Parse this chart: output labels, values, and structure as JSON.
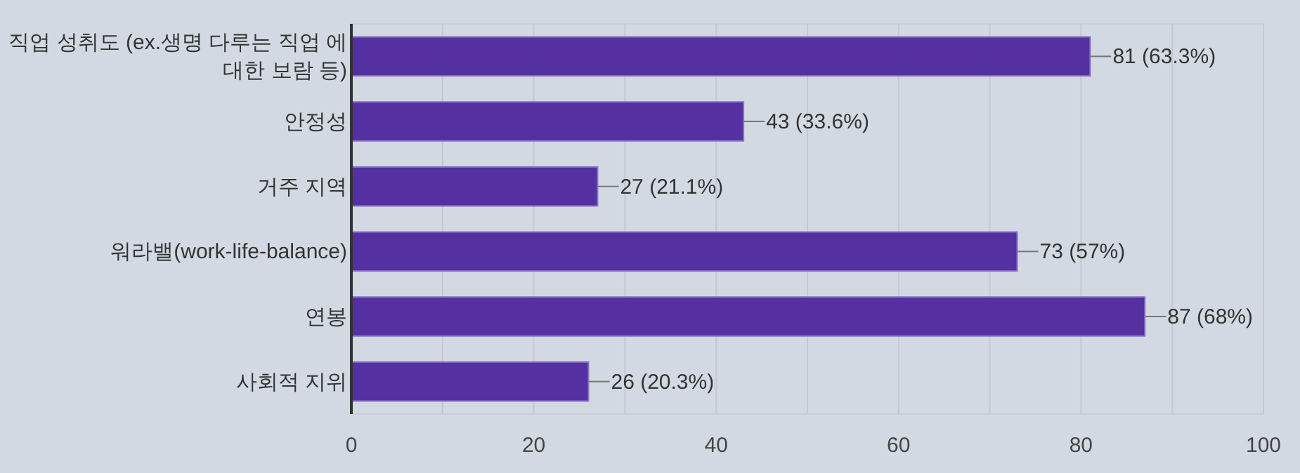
{
  "chart_data": {
    "type": "bar",
    "orientation": "horizontal",
    "categories": [
      "직업 성취도 (ex.생명 다루는 직업 에 대한 보람 등)",
      "안정성",
      "거주 지역",
      "워라밸(work-life-balance)",
      "연봉",
      "사회적 지위"
    ],
    "values": [
      81,
      43,
      27,
      73,
      87,
      26
    ],
    "value_labels": [
      "81 (63.3%)",
      "43 (33.6%)",
      "27 (21.1%)",
      "73 (57%)",
      "87 (68%)",
      "26 (20.3%)"
    ],
    "color": "#5530a0",
    "xlim": [
      0,
      100
    ],
    "xticks": [
      0,
      {
        "value": 10,
        "label": null
      },
      20,
      {
        "value": 30,
        "label": null
      },
      40,
      {
        "value": 50,
        "label": null
      },
      60,
      {
        "value": 70,
        "label": null
      },
      80,
      {
        "value": 90,
        "label": null
      },
      100
    ],
    "grid": "x"
  }
}
